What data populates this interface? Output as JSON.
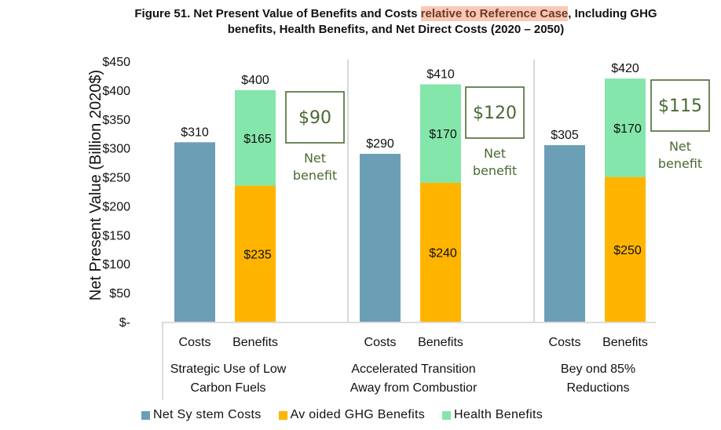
{
  "title": {
    "line1_prefix": "Figure 51. Net Present Value of Benefits and Costs ",
    "line1_highlight": "relative to Reference Case",
    "line1_suffix": ", Including GHG",
    "line2": "benefits, Health Benefits, and Net Direct Costs (2020 – 2050)"
  },
  "colors": {
    "net_system_costs": "#6b9fb5",
    "avoided_ghg": "#ffb400",
    "health": "#84e6aa",
    "net_benefit": "#4a6a34",
    "highlight": "#f9c9b6"
  },
  "chart_data": {
    "type": "bar",
    "title": "Figure 51. Net Present Value of Benefits and Costs relative to Reference Case, Including GHG benefits, Health Benefits, and Net Direct Costs (2020 – 2050)",
    "xlabel": "",
    "ylabel": "Net Present Value (Billion 2020$)",
    "ylim": [
      0,
      450
    ],
    "yticks": [
      0,
      50,
      100,
      150,
      200,
      250,
      300,
      350,
      400,
      450
    ],
    "ytick_labels": [
      "$-",
      "$50",
      "$100",
      "$150",
      "$200",
      "$250",
      "$300",
      "$350",
      "$400",
      "$450"
    ],
    "grid": false,
    "legend_position": "bottom",
    "stacked": true,
    "groups": [
      {
        "name": "Strategic Use of Low Carbon Fuels",
        "name_lines": [
          "Strategic Use of Low",
          "Carbon Fuels"
        ],
        "bars": [
          {
            "label": "Costs",
            "segments": [
              {
                "series": "Net System Costs",
                "value": 310
              }
            ],
            "total": 310,
            "total_label": "$310"
          },
          {
            "label": "Benefits",
            "segments": [
              {
                "series": "Avoided GHG Benefits",
                "value": 235,
                "label": "$235"
              },
              {
                "series": "Health Benefits",
                "value": 165,
                "label": "$165"
              }
            ],
            "total": 400,
            "total_label": "$400"
          }
        ],
        "net_benefit": {
          "value": 90,
          "value_label": "$90",
          "label_lines": [
            "Net",
            "benefit"
          ]
        }
      },
      {
        "name": "Accelerated Transition Away from Combustion",
        "name_lines": [
          "Accelerated Transition",
          "Away from Combustior"
        ],
        "bars": [
          {
            "label": "Costs",
            "segments": [
              {
                "series": "Net System Costs",
                "value": 290
              }
            ],
            "total": 290,
            "total_label": "$290"
          },
          {
            "label": "Benefits",
            "segments": [
              {
                "series": "Avoided GHG Benefits",
                "value": 240,
                "label": "$240"
              },
              {
                "series": "Health Benefits",
                "value": 170,
                "label": "$170"
              }
            ],
            "total": 410,
            "total_label": "$410"
          }
        ],
        "net_benefit": {
          "value": 120,
          "value_label": "$120",
          "label_lines": [
            "Net",
            "benefit"
          ]
        }
      },
      {
        "name": "Beyond 85% Reductions",
        "name_lines": [
          "Bey ond 85%",
          "Reductions"
        ],
        "bars": [
          {
            "label": "Costs",
            "segments": [
              {
                "series": "Net System Costs",
                "value": 305
              }
            ],
            "total": 305,
            "total_label": "$305"
          },
          {
            "label": "Benefits",
            "segments": [
              {
                "series": "Avoided GHG Benefits",
                "value": 250,
                "label": "$250"
              },
              {
                "series": "Health Benefits",
                "value": 170,
                "label": "$170"
              }
            ],
            "total": 420,
            "total_label": "$420"
          }
        ],
        "net_benefit": {
          "value": 115,
          "value_label": "$115",
          "label_lines": [
            "Net",
            "benefit"
          ]
        }
      }
    ],
    "legend": [
      {
        "series": "Net System Costs",
        "label": "Net Sy stem Costs",
        "color": "#6b9fb5"
      },
      {
        "series": "Avoided GHG Benefits",
        "label": "Av oided GHG Benefits",
        "color": "#ffb400"
      },
      {
        "series": "Health Benefits",
        "label": "Health Benefits",
        "color": "#84e6aa"
      }
    ]
  }
}
